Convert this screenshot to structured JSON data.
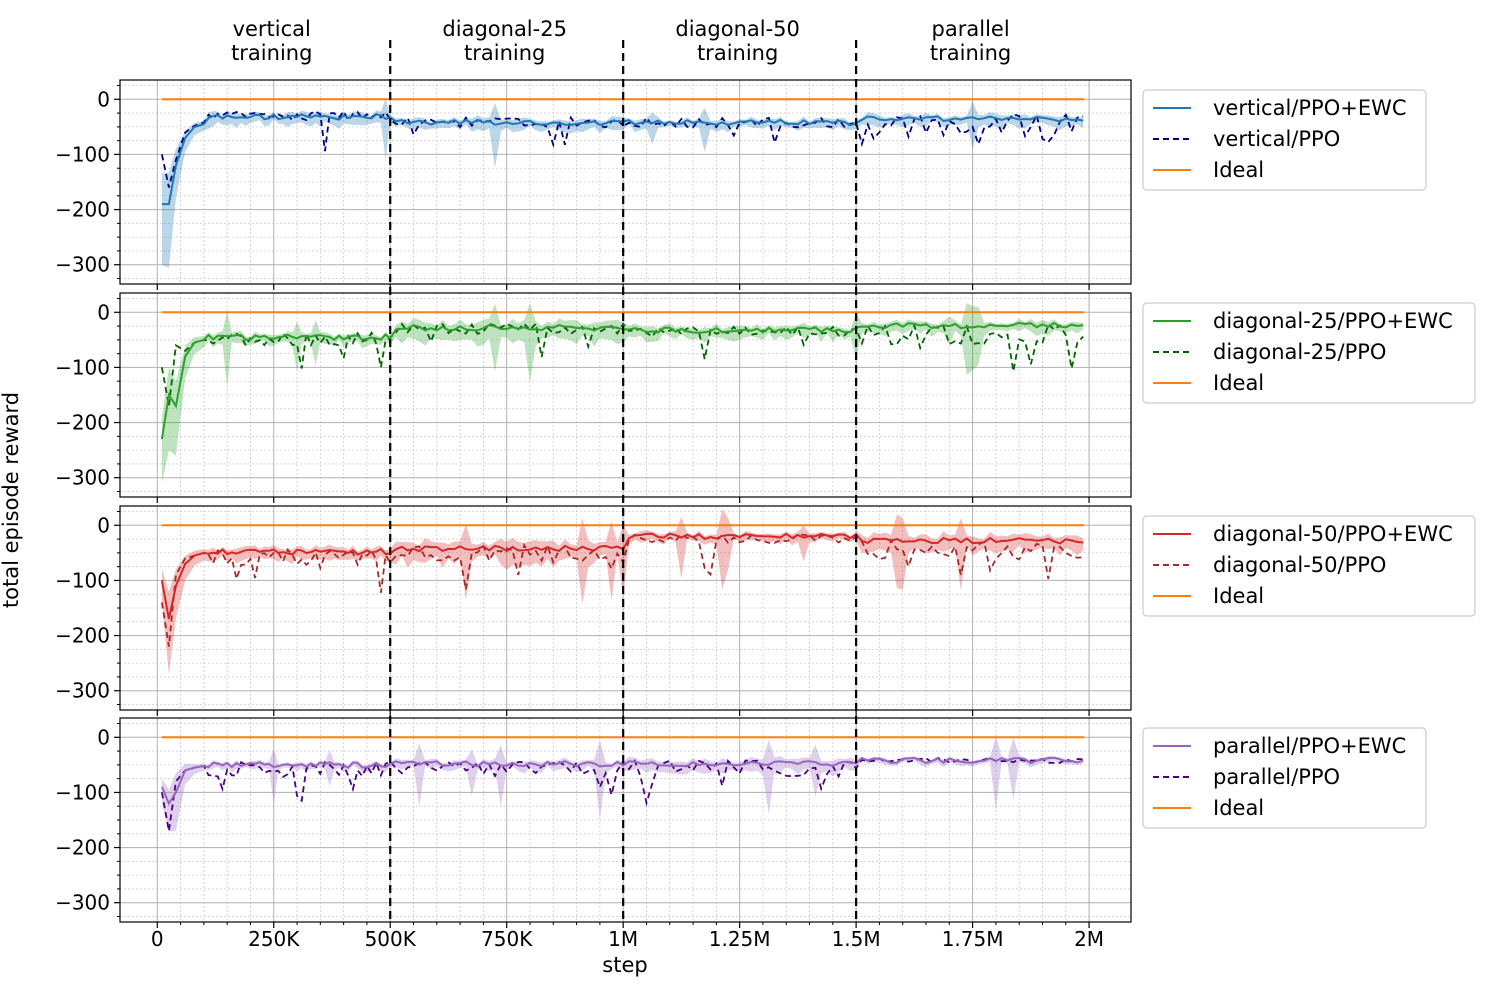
{
  "chart_data": {
    "type": "line",
    "xlabel": "step",
    "ylabel": "total episode reward",
    "xlim": [
      -80000,
      2090000
    ],
    "ylim": [
      -335000,
      35000
    ],
    "x_ticks": [
      0,
      250000,
      500000,
      750000,
      1000000,
      1250000,
      1500000,
      1750000,
      2000000
    ],
    "x_tick_labels": [
      "0",
      "250K",
      "500K",
      "750K",
      "1M",
      "1.25M",
      "1.5M",
      "1.75M",
      "2M"
    ],
    "y_ticks": [
      0,
      -100,
      -200,
      -300
    ],
    "y_tick_labels": [
      "0",
      "−100",
      "−200",
      "−300"
    ],
    "grid": true,
    "legend_position": "outside-right",
    "phase_boundaries": [
      500000,
      1000000,
      1500000
    ],
    "phases": [
      {
        "line1": "vertical",
        "line2": "training",
        "center": 250000
      },
      {
        "line1": "diagonal-25",
        "line2": "training",
        "center": 750000
      },
      {
        "line1": "diagonal-50",
        "line2": "training",
        "center": 1250000
      },
      {
        "line1": "parallel",
        "line2": "training",
        "center": 1750000
      }
    ],
    "panels": [
      {
        "env": "vertical",
        "color_ewc": "#1f77b4",
        "color_ppo": "#000080",
        "legend": [
          "vertical/PPO+EWC",
          "vertical/PPO",
          "Ideal"
        ],
        "early": {
          "x": [
            10000,
            25000,
            40000,
            60000,
            80000,
            100000
          ],
          "ewc": [
            -190,
            -190,
            -120,
            -70,
            -50,
            -45
          ],
          "ppo": [
            -100,
            -160,
            -110,
            -60,
            -48,
            -42
          ],
          "band": [
            110,
            115,
            60,
            25,
            15,
            12
          ]
        },
        "segments": [
          {
            "x0": 100000,
            "x1": 500000,
            "ewc": -32,
            "ppo": -30,
            "band": 14,
            "ppo_noise": 8,
            "dips": 1
          },
          {
            "x0": 500000,
            "x1": 1000000,
            "ewc": -42,
            "ppo": -42,
            "band": 12,
            "ppo_noise": 9,
            "dips": 3
          },
          {
            "x0": 1000000,
            "x1": 1500000,
            "ewc": -42,
            "ppo": -42,
            "band": 10,
            "ppo_noise": 9,
            "dips": 2
          },
          {
            "x0": 1500000,
            "x1": 2000000,
            "ewc": -36,
            "ppo": -50,
            "band": 12,
            "ppo_noise": 25,
            "dips": 6
          }
        ]
      },
      {
        "env": "diagonal-25",
        "color_ewc": "#2ca02c",
        "color_ppo": "#006400",
        "legend": [
          "diagonal-25/PPO+EWC",
          "diagonal-25/PPO",
          "Ideal"
        ],
        "early": {
          "x": [
            10000,
            25000,
            40000,
            60000,
            80000,
            100000
          ],
          "ewc": [
            -230,
            -150,
            -170,
            -80,
            -55,
            -50
          ],
          "ppo": [
            -100,
            -170,
            -60,
            -70,
            -55,
            -50
          ],
          "band": [
            80,
            100,
            90,
            40,
            20,
            14
          ]
        },
        "segments": [
          {
            "x0": 100000,
            "x1": 500000,
            "ewc": -45,
            "ppo": -48,
            "band": 12,
            "ppo_noise": 12,
            "dips": 3
          },
          {
            "x0": 500000,
            "x1": 1000000,
            "ewc": -28,
            "ppo": -30,
            "band": 22,
            "ppo_noise": 10,
            "dips": 3
          },
          {
            "x0": 1000000,
            "x1": 1500000,
            "ewc": -32,
            "ppo": -35,
            "band": 14,
            "ppo_noise": 9,
            "dips": 2
          },
          {
            "x0": 1500000,
            "x1": 2000000,
            "ewc": -24,
            "ppo": -40,
            "band": 12,
            "ppo_noise": 18,
            "dips": 5
          }
        ]
      },
      {
        "env": "diagonal-50",
        "color_ewc": "#d62728",
        "color_ppo": "#a52a2a",
        "legend": [
          "diagonal-50/PPO+EWC",
          "diagonal-50/PPO",
          "Ideal"
        ],
        "early": {
          "x": [
            10000,
            25000,
            40000,
            60000,
            80000,
            100000
          ],
          "ewc": [
            -100,
            -170,
            -110,
            -70,
            -55,
            -50
          ],
          "ppo": [
            -140,
            -220,
            -90,
            -60,
            -55,
            -50
          ],
          "band": [
            40,
            100,
            60,
            30,
            18,
            14
          ]
        },
        "segments": [
          {
            "x0": 100000,
            "x1": 500000,
            "ewc": -48,
            "ppo": -58,
            "band": 14,
            "ppo_noise": 14,
            "dips": 4
          },
          {
            "x0": 500000,
            "x1": 1000000,
            "ewc": -42,
            "ppo": -52,
            "band": 24,
            "ppo_noise": 16,
            "dips": 4
          },
          {
            "x0": 1000000,
            "x1": 1500000,
            "ewc": -20,
            "ppo": -24,
            "band": 10,
            "ppo_noise": 8,
            "dips": 2
          },
          {
            "x0": 1500000,
            "x1": 2000000,
            "ewc": -28,
            "ppo": -44,
            "band": 18,
            "ppo_noise": 18,
            "dips": 5
          }
        ]
      },
      {
        "env": "parallel",
        "color_ewc": "#9467bd",
        "color_ppo": "#4b0082",
        "legend": [
          "parallel/PPO+EWC",
          "parallel/PPO",
          "Ideal"
        ],
        "early": {
          "x": [
            10000,
            25000,
            40000,
            60000,
            80000,
            100000
          ],
          "ewc": [
            -90,
            -120,
            -100,
            -60,
            -55,
            -52
          ],
          "ppo": [
            -100,
            -170,
            -80,
            -60,
            -55,
            -52
          ],
          "band": [
            30,
            50,
            70,
            25,
            12,
            8
          ]
        },
        "segments": [
          {
            "x0": 100000,
            "x1": 500000,
            "ewc": -50,
            "ppo": -58,
            "band": 8,
            "ppo_noise": 14,
            "dips": 4
          },
          {
            "x0": 500000,
            "x1": 1000000,
            "ewc": -48,
            "ppo": -56,
            "band": 10,
            "ppo_noise": 12,
            "dips": 3
          },
          {
            "x0": 1000000,
            "x1": 1500000,
            "ewc": -48,
            "ppo": -58,
            "band": 14,
            "ppo_noise": 16,
            "dips": 4
          },
          {
            "x0": 1500000,
            "x1": 2000000,
            "ewc": -42,
            "ppo": -42,
            "band": 6,
            "ppo_noise": 5,
            "dips": 0
          }
        ]
      }
    ],
    "ideal": {
      "value": 0,
      "color": "#ff7f0e"
    }
  }
}
